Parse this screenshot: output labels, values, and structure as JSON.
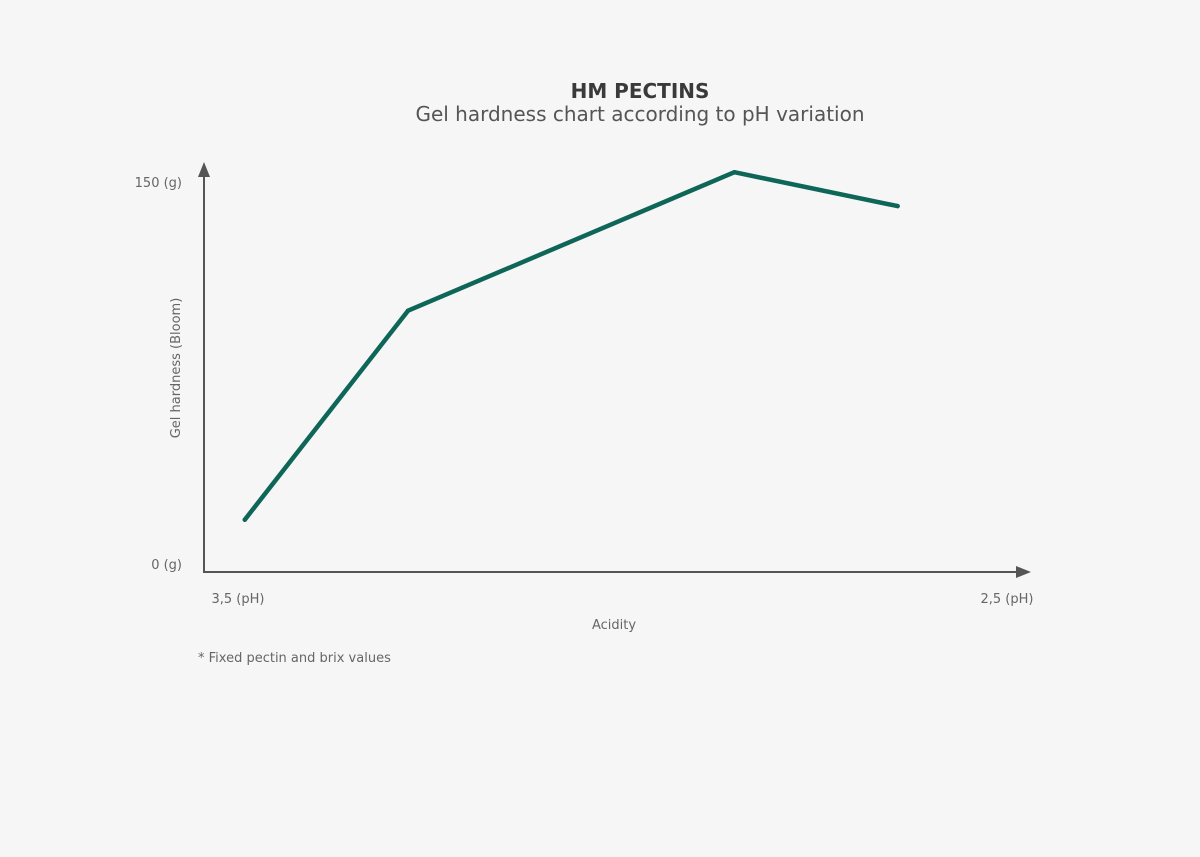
{
  "chart_data": {
    "type": "line",
    "title": "HM PECTINS",
    "subtitle": "Gel hardness chart according to pH variation",
    "xlabel": "Acidity",
    "ylabel": "Gel hardness (Bloom)",
    "x_ticks": [
      "3,5 (pH)",
      "2,5 (pH)"
    ],
    "y_ticks": [
      "0 (g)",
      "150 (g)"
    ],
    "xlim": [
      3.5,
      2.5
    ],
    "ylim": [
      0,
      150
    ],
    "x": [
      3.45,
      3.25,
      2.85,
      2.65
    ],
    "y": [
      20,
      100,
      153,
      140
    ],
    "line_color": "#0e6658",
    "axis_color": "#555555",
    "grid": false,
    "legend": "none",
    "footnote": "* Fixed pectin and brix values"
  }
}
